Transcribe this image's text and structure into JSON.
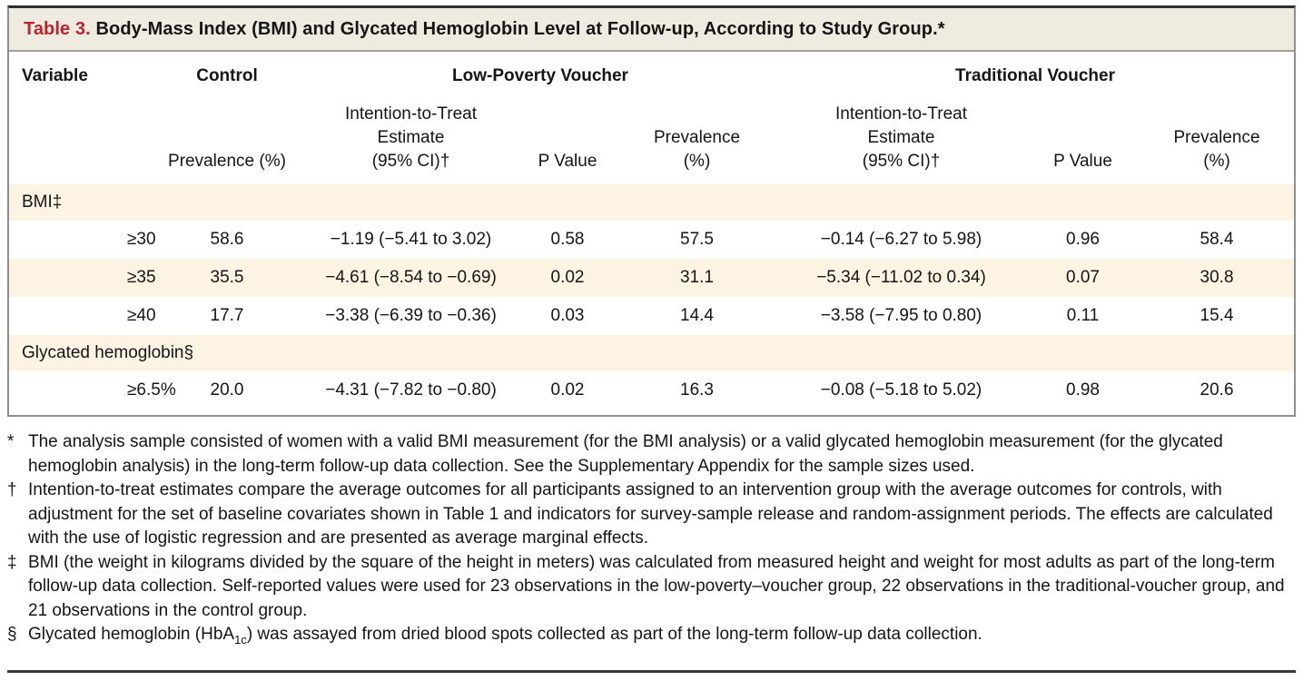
{
  "title": {
    "prefix": "Table 3.",
    "text": " Body-Mass Index (BMI) and Glycated Hemoglobin Level at Follow-up, According to Study Group.*"
  },
  "header": {
    "variable": "Variable",
    "groups": {
      "control": "Control",
      "low_poverty": "Low-Poverty Voucher",
      "traditional": "Traditional Voucher"
    },
    "sub": {
      "prevalence_pct": "Prevalence (%)",
      "itt_estimate": "Intention-to-Treat\nEstimate\n(95% CI)†",
      "p_value": "P Value",
      "prevalence_2line": "Prevalence\n(%)"
    }
  },
  "rows": {
    "bmi_section": "BMI‡",
    "bmi30": {
      "label": "≥30",
      "control_prev": "58.6",
      "lpv_est": "−1.19 (−5.41 to 3.02)",
      "lpv_p": "0.58",
      "lpv_prev": "57.5",
      "tv_est": "−0.14 (−6.27 to 5.98)",
      "tv_p": "0.96",
      "tv_prev": "58.4"
    },
    "bmi35": {
      "label": "≥35",
      "control_prev": "35.5",
      "lpv_est": "−4.61 (−8.54 to −0.69)",
      "lpv_p": "0.02",
      "lpv_prev": "31.1",
      "tv_est": "−5.34 (−11.02 to 0.34)",
      "tv_p": "0.07",
      "tv_prev": "30.8"
    },
    "bmi40": {
      "label": "≥40",
      "control_prev": "17.7",
      "lpv_est": "−3.38 (−6.39 to −0.36)",
      "lpv_p": "0.03",
      "lpv_prev": "14.4",
      "tv_est": "−3.58 (−7.95 to 0.80)",
      "tv_p": "0.11",
      "tv_prev": "15.4"
    },
    "gh_section": "Glycated hemoglobin§",
    "gh65": {
      "label": "≥6.5%",
      "control_prev": "20.0",
      "lpv_est": "−4.31 (−7.82 to −0.80)",
      "lpv_p": "0.02",
      "lpv_prev": "16.3",
      "tv_est": "−0.08 (−5.18 to 5.02)",
      "tv_p": "0.98",
      "tv_prev": "20.6"
    }
  },
  "footnotes": [
    {
      "marker": "*",
      "text": "The analysis sample consisted of women with a valid BMI measurement (for the BMI analysis) or a valid glycated hemoglobin measurement (for the glycated hemoglobin analysis) in the long-term follow-up data collection. See the Supplementary Appendix for the sample sizes used."
    },
    {
      "marker": "†",
      "text": "Intention-to-treat estimates compare the average outcomes for all participants assigned to an intervention group with the average outcomes for controls, with adjustment for the set of baseline covariates shown in Table 1 and indicators for survey-sample release and random-assignment periods. The effects are calculated with the use of logistic regression and are presented as average marginal effects."
    },
    {
      "marker": "‡",
      "text": "BMI (the weight in kilograms divided by the square of the height in meters) was calculated from measured height and weight for most adults as part of the long-term follow-up data collection. Self-reported values were used for 23 observations in the low-poverty–voucher group, 22 observations in the traditional-voucher group, and 21 observations in the control group."
    },
    {
      "marker": "§",
      "text_before": "Glycated hemoglobin (HbA",
      "sub": "1c",
      "text_after": ") was assayed from dried blood spots collected as part of the long-term follow-up data collection."
    }
  ],
  "colors": {
    "accent_red": "#b9252b",
    "stripe_cream": "#fdf3e2",
    "titlebar_bg": "#f0ebe1",
    "rule_dark": "#3a3a3a",
    "border_gray": "#8f8f8f"
  }
}
